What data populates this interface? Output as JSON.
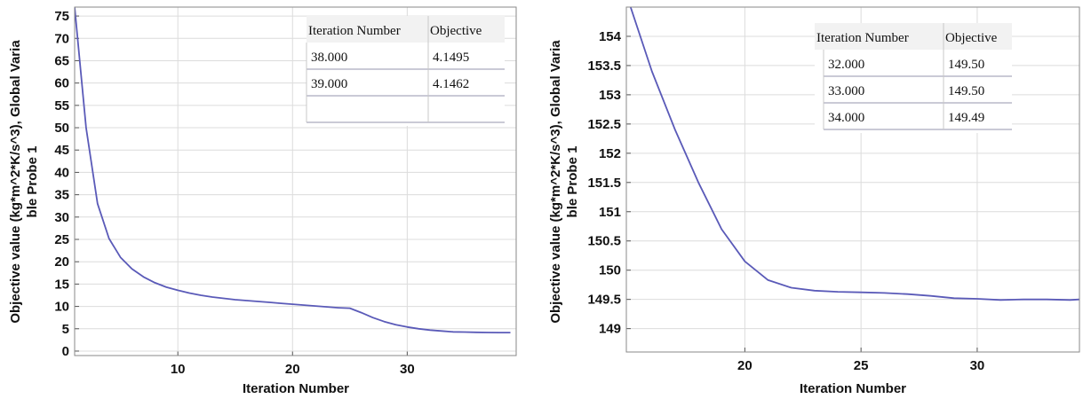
{
  "charts": [
    {
      "xlabel": "Iteration Number",
      "ylabel": [
        "Objective value (kg*m^2*K/s^3), Global Varia",
        "ble Probe 1"
      ],
      "table": {
        "headers": [
          "Iteration Number",
          "Objective"
        ],
        "rows": [
          [
            "38.000",
            "4.1495"
          ],
          [
            "39.000",
            "4.1462"
          ]
        ],
        "empty_rows": 1
      }
    },
    {
      "xlabel": "Iteration Number",
      "ylabel": [
        "Objective value (kg*m^2*K/s^3), Global Varia",
        "ble Probe 1"
      ],
      "table": {
        "headers": [
          "Iteration Number",
          "Objective"
        ],
        "rows": [
          [
            "32.000",
            "149.50"
          ],
          [
            "33.000",
            "149.50"
          ],
          [
            "34.000",
            "149.49"
          ]
        ],
        "empty_rows": 0
      }
    }
  ],
  "chart_data": [
    {
      "type": "line",
      "xlabel": "Iteration Number",
      "ylabel": "Objective value (kg*m^2*K/s^3), Global Variable Probe 1",
      "xlim": [
        1,
        39.5
      ],
      "ylim": [
        -1,
        77
      ],
      "xticks": [
        10,
        20,
        30
      ],
      "yticks": [
        0,
        5,
        10,
        15,
        20,
        25,
        30,
        35,
        40,
        45,
        50,
        55,
        60,
        65,
        70,
        75
      ],
      "grid": true,
      "color": "#5a5ab8",
      "x": [
        1,
        2,
        3,
        4,
        5,
        6,
        7,
        8,
        9,
        10,
        11,
        12,
        13,
        14,
        15,
        16,
        17,
        18,
        19,
        20,
        21,
        22,
        23,
        24,
        25,
        26,
        27,
        28,
        29,
        30,
        31,
        32,
        33,
        34,
        35,
        36,
        37,
        38,
        39
      ],
      "y": [
        77,
        50,
        33,
        25.2,
        21,
        18.4,
        16.6,
        15.3,
        14.3,
        13.6,
        13.0,
        12.5,
        12.1,
        11.8,
        11.5,
        11.3,
        11.1,
        10.9,
        10.7,
        10.5,
        10.3,
        10.1,
        9.9,
        9.7,
        9.6,
        8.6,
        7.5,
        6.6,
        5.9,
        5.4,
        5.0,
        4.7,
        4.5,
        4.3,
        4.25,
        4.2,
        4.17,
        4.1495,
        4.1462
      ]
    },
    {
      "type": "line",
      "xlabel": "Iteration Number",
      "ylabel": "Objective value (kg*m^2*K/s^3), Global Variable Probe 1",
      "xlim": [
        14.9,
        34.4
      ],
      "ylim": [
        148.6,
        154.5
      ],
      "xticks": [
        20,
        25,
        30
      ],
      "yticks": [
        149,
        149.5,
        150,
        150.5,
        151,
        151.5,
        152,
        152.5,
        153,
        153.5,
        154
      ],
      "grid": true,
      "color": "#5a5ab8",
      "x": [
        15,
        16,
        17,
        18,
        19,
        20,
        21,
        22,
        23,
        24,
        25,
        26,
        27,
        28,
        29,
        30,
        31,
        32,
        33,
        34,
        34.4
      ],
      "y": [
        154.6,
        153.4,
        152.4,
        151.5,
        150.7,
        150.15,
        149.83,
        149.7,
        149.65,
        149.63,
        149.62,
        149.61,
        149.59,
        149.56,
        149.52,
        149.51,
        149.49,
        149.5,
        149.5,
        149.49,
        149.5
      ]
    }
  ]
}
